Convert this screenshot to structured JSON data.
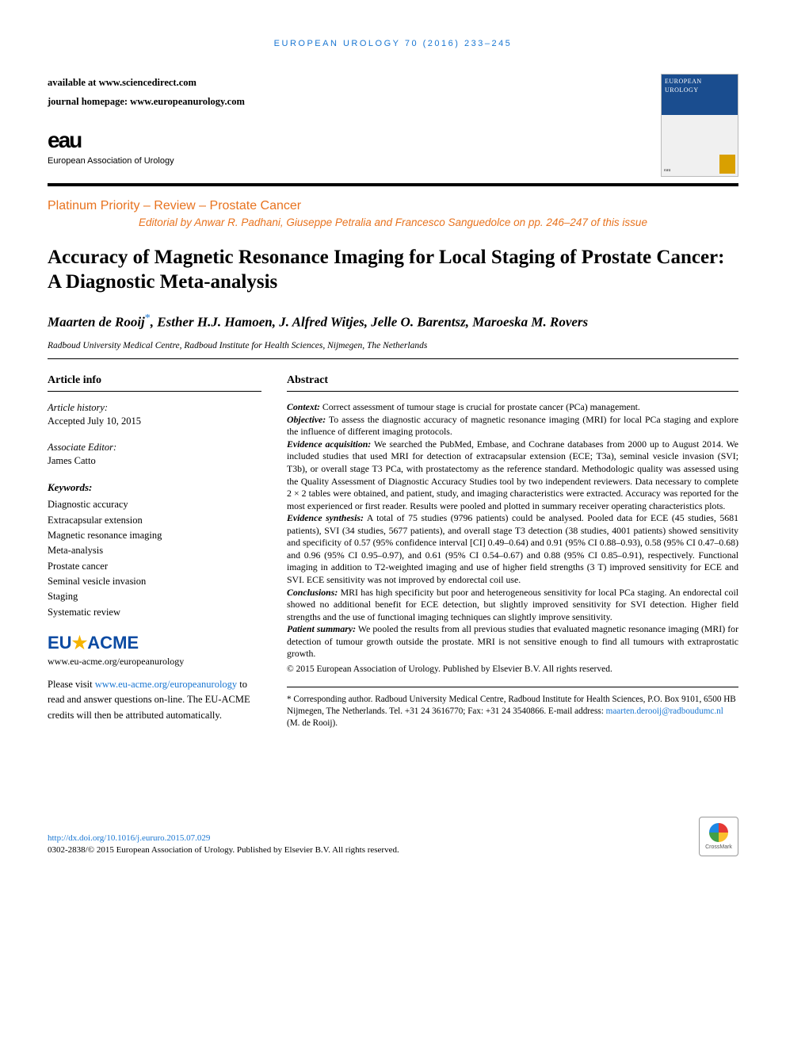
{
  "running_header": "EUROPEAN UROLOGY 70 (2016) 233–245",
  "availability": {
    "line1_label": "available at ",
    "line1_value": "www.sciencedirect.com",
    "line2_label": "journal homepage: ",
    "line2_value": "www.europeanurology.com"
  },
  "cover": {
    "journal_title": "EUROPEAN UROLOGY"
  },
  "eau_logo": {
    "mark": "eau",
    "text": "European Association of Urology"
  },
  "section_type": "Platinum Priority – Review – Prostate Cancer",
  "editorial_note": "Editorial by Anwar R. Padhani, Giuseppe Petralia and Francesco Sanguedolce on pp. 246–247 of this issue",
  "title": "Accuracy of Magnetic Resonance Imaging for Local Staging of Prostate Cancer: A Diagnostic Meta-analysis",
  "authors": {
    "a1": "Maarten de Rooij",
    "corr_mark": "*",
    "a2": ", Esther H.J. Hamoen, J. Alfred Witjes, Jelle O. Barentsz, Maroeska M. Rovers"
  },
  "affiliation": "Radboud University Medical Centre, Radboud Institute for Health Sciences, Nijmegen, The Netherlands",
  "article_info": {
    "head": "Article info",
    "history_label": "Article history:",
    "history_value": "Accepted July 10, 2015",
    "assoc_editor_label": "Associate Editor:",
    "assoc_editor_value": "James Catto",
    "keywords_label": "Keywords:",
    "keywords": [
      "Diagnostic accuracy",
      "Extracapsular extension",
      "Magnetic resonance imaging",
      "Meta-analysis",
      "Prostate cancer",
      "Seminal vesicle invasion",
      "Staging",
      "Systematic review"
    ]
  },
  "euacme": {
    "eu": "EU",
    "star": "★",
    "acme": "ACME",
    "url": "www.eu-acme.org/europeanurology",
    "text_pre": "Please visit ",
    "text_link": "www.eu-acme.org/europeanurology",
    "text_post": " to read and answer questions on-line. The EU-ACME credits will then be attributed automatically."
  },
  "abstract": {
    "head": "Abstract",
    "context_label": "Context:",
    "context": " Correct assessment of tumour stage is crucial for prostate cancer (PCa) management.",
    "objective_label": "Objective:",
    "objective": " To assess the diagnostic accuracy of magnetic resonance imaging (MRI) for local PCa staging and explore the influence of different imaging protocols.",
    "evidence_acq_label": "Evidence acquisition:",
    "evidence_acq": " We searched the PubMed, Embase, and Cochrane databases from 2000 up to August 2014. We included studies that used MRI for detection of extracapsular extension (ECE; T3a), seminal vesicle invasion (SVI; T3b), or overall stage T3 PCa, with prostatectomy as the reference standard. Methodologic quality was assessed using the Quality Assessment of Diagnostic Accuracy Studies tool by two independent reviewers. Data necessary to complete 2 × 2 tables were obtained, and patient, study, and imaging characteristics were extracted. Accuracy was reported for the most experienced or first reader. Results were pooled and plotted in summary receiver operating characteristics plots.",
    "evidence_syn_label": "Evidence synthesis:",
    "evidence_syn": " A total of 75 studies (9796 patients) could be analysed. Pooled data for ECE (45 studies, 5681 patients), SVI (34 studies, 5677 patients), and overall stage T3 detection (38 studies, 4001 patients) showed sensitivity and specificity of 0.57 (95% confidence interval [CI] 0.49–0.64) and 0.91 (95% CI 0.88–0.93), 0.58 (95% CI 0.47–0.68) and 0.96 (95% CI 0.95–0.97), and 0.61 (95% CI 0.54–0.67) and 0.88 (95% CI 0.85–0.91), respectively. Functional imaging in addition to T2-weighted imaging and use of higher field strengths (3 T) improved sensitivity for ECE and SVI. ECE sensitivity was not improved by endorectal coil use.",
    "conclusions_label": "Conclusions:",
    "conclusions": " MRI has high specificity but poor and heterogeneous sensitivity for local PCa staging. An endorectal coil showed no additional benefit for ECE detection, but slightly improved sensitivity for SVI detection. Higher field strengths and the use of functional imaging techniques can slightly improve sensitivity.",
    "patient_summary_label": "Patient summary:",
    "patient_summary": " We pooled the results from all previous studies that evaluated magnetic resonance imaging (MRI) for detection of tumour growth outside the prostate. MRI is not sensitive enough to find all tumours with extraprostatic growth.",
    "copyright": "© 2015 European Association of Urology. Published by Elsevier B.V. All rights reserved."
  },
  "correspondence": {
    "mark": "*",
    "text": " Corresponding author. Radboud University Medical Centre, Radboud Institute for Health Sciences, P.O. Box 9101, 6500 HB Nijmegen, The Netherlands. Tel. +31 24 3616770; Fax: +31 24 3540866. E-mail address: ",
    "email": "maarten.derooij@radboudumc.nl",
    "tail": " (M. de Rooij)."
  },
  "footer": {
    "doi": "http://dx.doi.org/10.1016/j.eururo.2015.07.029",
    "issn_line": "0302-2838/© 2015 European Association of Urology. Published by Elsevier B.V. All rights reserved.",
    "crossmark": "CrossMark"
  },
  "colors": {
    "link": "#1976d2",
    "accent": "#e8731f"
  }
}
